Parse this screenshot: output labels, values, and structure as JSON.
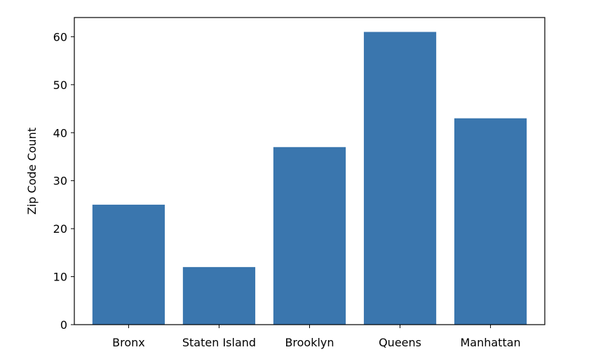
{
  "chart_data": {
    "type": "bar",
    "categories": [
      "Bronx",
      "Staten Island",
      "Brooklyn",
      "Queens",
      "Manhattan"
    ],
    "values": [
      25,
      12,
      37,
      61,
      43
    ],
    "title": "",
    "xlabel": "",
    "ylabel": "Zip Code Count",
    "ylim": [
      0,
      64
    ],
    "yticks": [
      0,
      10,
      20,
      30,
      40,
      50,
      60
    ],
    "grid": false,
    "bar_color": "#3a76ae"
  }
}
